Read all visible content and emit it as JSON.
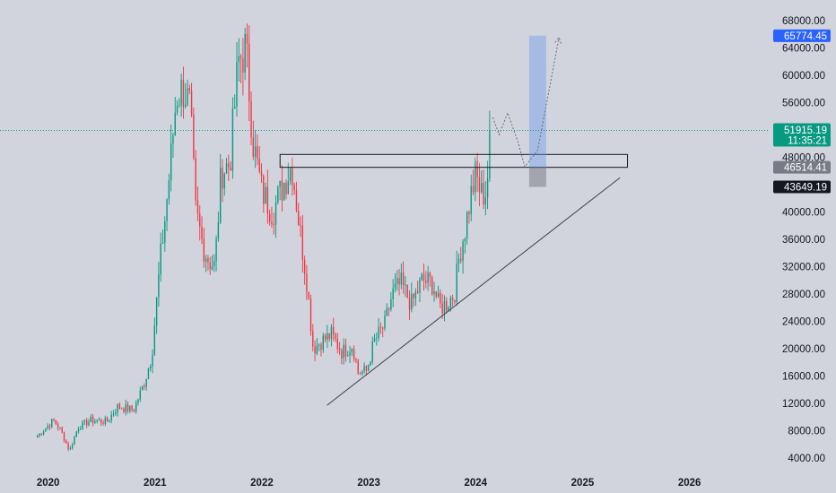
{
  "chart_data": {
    "type": "candlestick",
    "title": "",
    "xlabel": "",
    "ylabel": "",
    "x_tick_labels": [
      "2020",
      "2021",
      "2022",
      "2023",
      "2024",
      "2025",
      "2026"
    ],
    "y_tick_labels": [
      "68000.00",
      "64000.00",
      "60000.00",
      "56000.00",
      "48000.00",
      "40000.00",
      "36000.00",
      "32000.00",
      "28000.00",
      "24000.00",
      "20000.00",
      "16000.00",
      "12000.00",
      "8000.00",
      "4000.00"
    ],
    "y_ticks": [
      68000,
      64000,
      60000,
      56000,
      48000,
      40000,
      36000,
      32000,
      28000,
      24000,
      20000,
      16000,
      12000,
      8000,
      4000
    ],
    "x_range": [
      2019.55,
      2026.75
    ],
    "y_range": [
      2400,
      71000
    ],
    "up_color": "#089981",
    "down_color": "#f23645",
    "candle_anchor_path": [
      [
        2019.9,
        7200
      ],
      [
        2020.05,
        9500
      ],
      [
        2020.12,
        8000
      ],
      [
        2020.2,
        5000
      ],
      [
        2020.28,
        8500
      ],
      [
        2020.4,
        9500
      ],
      [
        2020.55,
        9300
      ],
      [
        2020.65,
        11500
      ],
      [
        2020.8,
        11000
      ],
      [
        2020.9,
        15000
      ],
      [
        2020.97,
        19000
      ],
      [
        2021.05,
        33000
      ],
      [
        2021.1,
        40000
      ],
      [
        2021.15,
        48000
      ],
      [
        2021.2,
        57000
      ],
      [
        2021.27,
        58000
      ],
      [
        2021.33,
        55000
      ],
      [
        2021.38,
        40000
      ],
      [
        2021.45,
        35000
      ],
      [
        2021.5,
        33000
      ],
      [
        2021.56,
        32000
      ],
      [
        2021.62,
        46000
      ],
      [
        2021.7,
        47000
      ],
      [
        2021.78,
        62000
      ],
      [
        2021.85,
        64000
      ],
      [
        2021.92,
        50000
      ],
      [
        2022.0,
        43000
      ],
      [
        2022.1,
        40000
      ],
      [
        2022.2,
        44000
      ],
      [
        2022.28,
        47000
      ],
      [
        2022.35,
        38000
      ],
      [
        2022.42,
        30000
      ],
      [
        2022.48,
        20000
      ],
      [
        2022.55,
        21000
      ],
      [
        2022.65,
        22000
      ],
      [
        2022.75,
        19500
      ],
      [
        2022.85,
        20500
      ],
      [
        2022.9,
        16500
      ],
      [
        2022.98,
        16700
      ],
      [
        2023.05,
        21000
      ],
      [
        2023.15,
        23500
      ],
      [
        2023.22,
        28000
      ],
      [
        2023.3,
        29500
      ],
      [
        2023.4,
        26500
      ],
      [
        2023.5,
        30000
      ],
      [
        2023.6,
        29500
      ],
      [
        2023.66,
        26000
      ],
      [
        2023.72,
        26500
      ],
      [
        2023.8,
        28000
      ],
      [
        2023.85,
        34000
      ],
      [
        2023.9,
        37500
      ],
      [
        2023.95,
        42000
      ],
      [
        2024.0,
        45500
      ],
      [
        2024.05,
        42500
      ],
      [
        2024.1,
        43000
      ],
      [
        2024.12,
        47000
      ],
      [
        2024.14,
        51915
      ]
    ],
    "current_price": {
      "value": 51915.19,
      "label": "51915.19",
      "countdown": "11:35:21",
      "color": "#089981"
    },
    "price_tags": [
      {
        "value": 65774.45,
        "label": "65774.45",
        "color": "#2962ff"
      },
      {
        "value": 46514.41,
        "label": "46514.41",
        "color": "#787b86"
      },
      {
        "value": 43649.19,
        "label": "43649.19",
        "color": "#131722"
      }
    ],
    "annotations": [
      {
        "kind": "rectangle",
        "name": "resistance-zone",
        "x0": 2022.17,
        "x1": 2025.42,
        "y0": 46514,
        "y1": 48400,
        "stroke": "#131722",
        "fill": "rgba(255,255,255,0.12)"
      },
      {
        "kind": "trendline",
        "name": "rising-support-trendline",
        "x0": 2022.61,
        "y0": 11700,
        "x1": 2025.35,
        "y1": 45000,
        "stroke": "#3c3f48"
      },
      {
        "kind": "rectangle",
        "name": "target-box-profit",
        "x0": 2024.5,
        "x1": 2024.66,
        "y0": 46514,
        "y1": 65774,
        "stroke": "none",
        "fill": "rgba(100,150,240,0.40)"
      },
      {
        "kind": "rectangle",
        "name": "target-box-stop",
        "x0": 2024.5,
        "x1": 2024.66,
        "y0": 43649,
        "y1": 46514,
        "stroke": "none",
        "fill": "rgba(100,100,110,0.42)"
      },
      {
        "kind": "path",
        "name": "projected-path-arrow",
        "dashed": true,
        "stroke": "#6a6d78",
        "points": [
          [
            2024.16,
            53800
          ],
          [
            2024.22,
            51300
          ],
          [
            2024.3,
            54500
          ],
          [
            2024.4,
            50000
          ],
          [
            2024.46,
            46600
          ],
          [
            2024.58,
            49000
          ],
          [
            2024.78,
            65500
          ]
        ]
      }
    ]
  }
}
